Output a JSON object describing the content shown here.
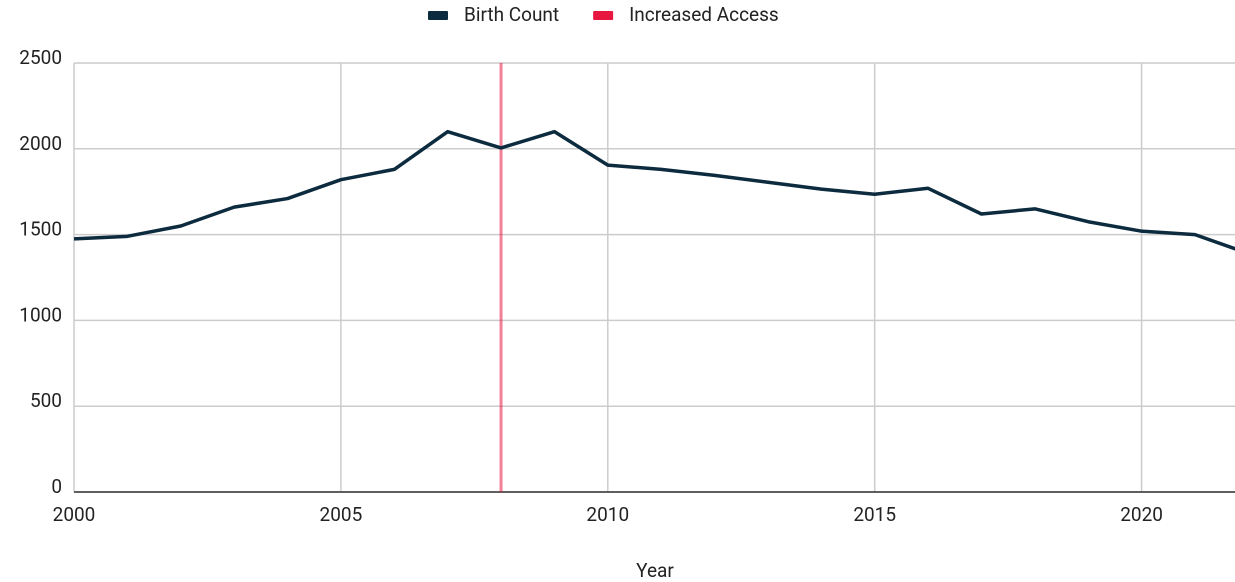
{
  "chart_data": {
    "type": "line",
    "x_label": "Year",
    "x": [
      2000,
      2001,
      2002,
      2003,
      2004,
      2005,
      2006,
      2007,
      2008,
      2009,
      2010,
      2011,
      2012,
      2013,
      2014,
      2015,
      2016,
      2017,
      2018,
      2019,
      2020,
      2021,
      2022
    ],
    "series": [
      {
        "name": "Birth Count",
        "color": "#0d2b3e",
        "values": [
          1475,
          1490,
          1550,
          1660,
          1710,
          1820,
          1880,
          2100,
          2005,
          2100,
          1905,
          1880,
          1845,
          1805,
          1765,
          1735,
          1770,
          1620,
          1650,
          1575,
          1520,
          1500,
          1390
        ]
      }
    ],
    "vline": {
      "name": "Increased Access",
      "color": "#e8173f",
      "x": 2008
    },
    "xlim": [
      2000,
      2021.75
    ],
    "xticks": [
      2000,
      2005,
      2010,
      2015,
      2020
    ],
    "ylim": [
      0,
      2500
    ],
    "yticks": [
      0,
      500,
      1000,
      1500,
      2000,
      2500
    ],
    "grid": true,
    "legend": "top"
  }
}
